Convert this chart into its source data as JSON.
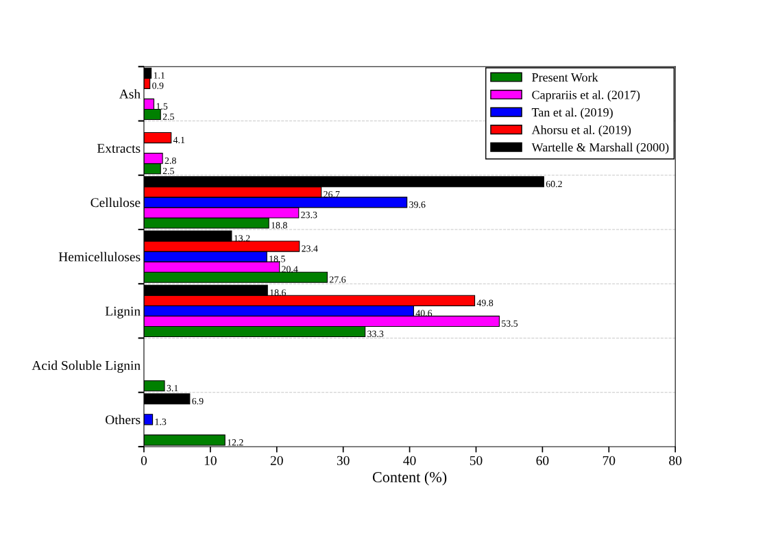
{
  "chart_data": {
    "type": "bar",
    "orientation": "horizontal",
    "categories": [
      "Ash",
      "Extracts",
      "Cellulose",
      "Hemicelluloses",
      "Lignin",
      "Acid Soluble Lignin",
      "Others"
    ],
    "series": [
      {
        "name": "Present Work",
        "color": "#008000",
        "values": [
          2.5,
          2.5,
          18.8,
          27.6,
          33.3,
          3.1,
          12.2
        ]
      },
      {
        "name": "Caprariis et al. (2017)",
        "color": "#ff00ff",
        "values": [
          1.5,
          2.8,
          23.3,
          20.4,
          53.5,
          null,
          null
        ]
      },
      {
        "name": "Tan et al. (2019)",
        "color": "#0000ff",
        "values": [
          null,
          null,
          39.6,
          18.5,
          40.6,
          null,
          1.3
        ]
      },
      {
        "name": "Ahorsu et al. (2019)",
        "color": "#ff0000",
        "values": [
          0.9,
          4.1,
          26.7,
          23.4,
          49.8,
          null,
          null
        ]
      },
      {
        "name": "Wartelle & Marshall (2000)",
        "color": "#000000",
        "values": [
          1.1,
          null,
          60.2,
          13.2,
          18.6,
          null,
          6.9
        ]
      }
    ],
    "xlabel": "Content (%)",
    "xlim": [
      0,
      80
    ],
    "xticks": [
      0,
      10,
      20,
      30,
      40,
      50,
      60,
      70,
      80
    ],
    "data_labels": true,
    "grid": "y",
    "legend": "top right"
  }
}
